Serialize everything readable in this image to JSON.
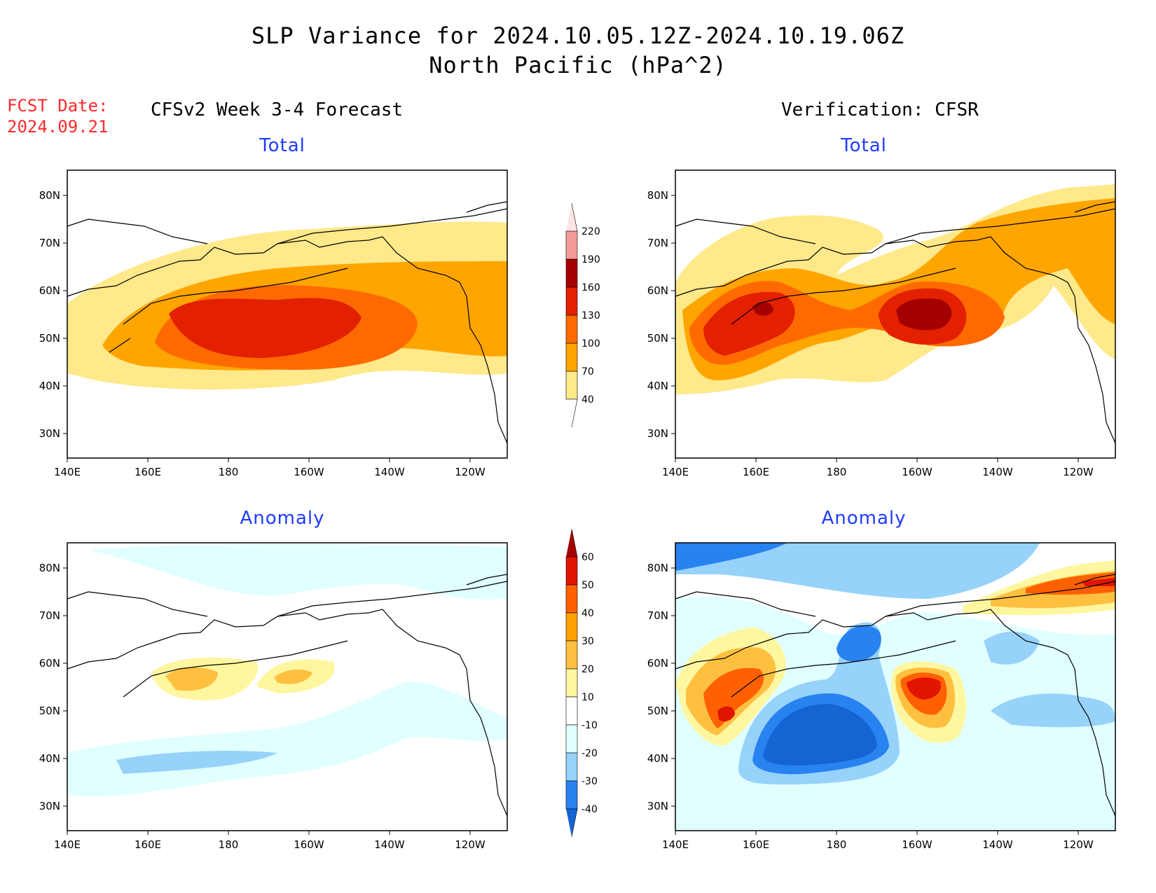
{
  "header": {
    "title_line1": "SLP Variance for 2024.10.05.12Z-2024.10.19.06Z",
    "title_line2": "North Pacific (hPa^2)",
    "fcst_label": "FCST Date:",
    "fcst_date": "2024.09.21",
    "left_heading": "CFSv2 Week 3-4 Forecast",
    "right_heading": "Verification: CFSR"
  },
  "panels": [
    {
      "id": "forecast-total",
      "subtitle": "Total"
    },
    {
      "id": "verification-total",
      "subtitle": "Total"
    },
    {
      "id": "forecast-anomaly",
      "subtitle": "Anomaly"
    },
    {
      "id": "verification-anomaly",
      "subtitle": "Anomaly"
    }
  ],
  "axes": {
    "lon_labels": [
      "140E",
      "160E",
      "180",
      "160W",
      "140W",
      "120W"
    ],
    "lat_labels": [
      "80N",
      "70N",
      "60N",
      "50N",
      "40N",
      "30N"
    ]
  },
  "colorbars": {
    "total": {
      "levels": [
        "40",
        "70",
        "100",
        "130",
        "160",
        "190",
        "220"
      ],
      "colors": [
        "#ffe98a",
        "#ffa500",
        "#ff6a00",
        "#e32000",
        "#a50000",
        "#f59a9a",
        "#ffe4e4"
      ]
    },
    "anomaly": {
      "levels": [
        "-40",
        "-30",
        "-20",
        "-10",
        "10",
        "20",
        "30",
        "40",
        "50",
        "60"
      ],
      "colors": [
        "#1464d2",
        "#2882f0",
        "#96d2fa",
        "#e1ffff",
        "#ffffff",
        "#fff6a0",
        "#ffc040",
        "#ffa000",
        "#ff6000",
        "#e01400",
        "#a50000"
      ]
    }
  },
  "colors": {
    "title_text": "#000000",
    "fcst_text": "#ff2a2a",
    "subtitle_text": "#1f3cff"
  }
}
